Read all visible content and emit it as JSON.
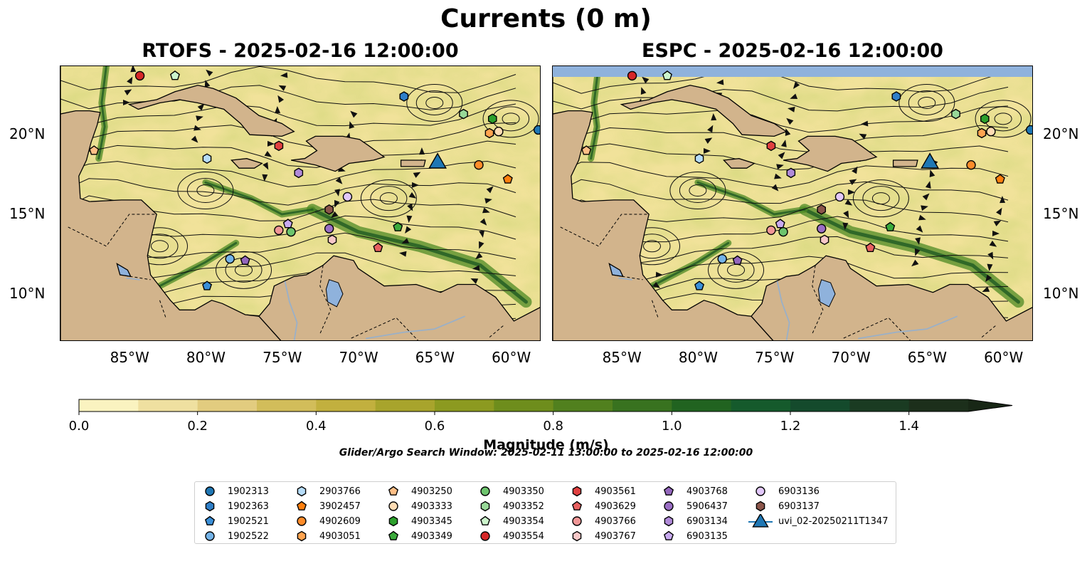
{
  "title": "Currents (0 m)",
  "panels": [
    {
      "title": "RTOFS - 2025-02-16 12:00:00"
    },
    {
      "title": "ESPC - 2025-02-16 12:00:00"
    }
  ],
  "axes": {
    "lon_labels": [
      "85°W",
      "80°W",
      "75°W",
      "70°W",
      "65°W",
      "60°W"
    ],
    "lat_labels": [
      "20°N",
      "15°N",
      "10°N"
    ],
    "lon_range": [
      -89.5,
      -58.0
    ],
    "lat_range": [
      7.0,
      24.3
    ]
  },
  "colorbar": {
    "label": "Magnitude (m/s)",
    "ticks": [
      "0.0",
      "0.2",
      "0.4",
      "0.6",
      "0.8",
      "1.0",
      "1.2",
      "1.4"
    ],
    "range": [
      0,
      1.5
    ],
    "step": 0.1,
    "extend": "max",
    "colors": [
      "#faf3c0",
      "#efe0a0",
      "#e2cc7f",
      "#d2bd5a",
      "#c2b03e",
      "#a8a42c",
      "#8c9a20",
      "#6e8d1c",
      "#51801e",
      "#38721f",
      "#216320",
      "#155a2c",
      "#144a2c",
      "#1a3b22",
      "#1c2f1b",
      "#182716"
    ]
  },
  "search_window": "Glider/Argo Search Window: 2025-02-11 13:00:00 to 2025-02-16 12:00:00",
  "platforms": [
    {
      "id": "1902313",
      "marker": "circle",
      "color": "#1f77b4",
      "lon": -58.2,
      "lat": 20.3
    },
    {
      "id": "1902363",
      "marker": "hexagon",
      "color": "#2f7fc8",
      "lon": -67.0,
      "lat": 22.4
    },
    {
      "id": "1902521",
      "marker": "pentagon",
      "color": "#3a8fd8",
      "lon": -79.9,
      "lat": 10.5
    },
    {
      "id": "1902522",
      "marker": "circle",
      "color": "#74b3e8",
      "lon": -78.4,
      "lat": 12.2
    },
    {
      "id": "2903766",
      "marker": "hexagon",
      "color": "#b6dcf8",
      "lon": -79.9,
      "lat": 18.5
    },
    {
      "id": "3902457",
      "marker": "pentagon",
      "color": "#ff7f0e",
      "lon": -60.2,
      "lat": 17.2
    },
    {
      "id": "4902609",
      "marker": "circle",
      "color": "#ff8c2a",
      "lon": -62.1,
      "lat": 18.1
    },
    {
      "id": "4903051",
      "marker": "hexagon",
      "color": "#ffa450",
      "lon": -61.4,
      "lat": 20.1
    },
    {
      "id": "4903250",
      "marker": "pentagon",
      "color": "#ffbf86",
      "lon": -87.3,
      "lat": 19.0
    },
    {
      "id": "4903333",
      "marker": "circle",
      "color": "#ffdcb4",
      "lon": -60.8,
      "lat": 20.2
    },
    {
      "id": "4903345",
      "marker": "hexagon",
      "color": "#2ca02c",
      "lon": -61.2,
      "lat": 21.0
    },
    {
      "id": "4903349",
      "marker": "pentagon",
      "color": "#3caa3c",
      "lon": -67.4,
      "lat": 14.2
    },
    {
      "id": "4903350",
      "marker": "circle",
      "color": "#6dc46d",
      "lon": -74.4,
      "lat": 13.9
    },
    {
      "id": "4903352",
      "marker": "hexagon",
      "color": "#98d898",
      "lon": -63.1,
      "lat": 21.3
    },
    {
      "id": "4903354",
      "marker": "pentagon",
      "color": "#ccf5cc",
      "lon": -82.0,
      "lat": 23.7
    },
    {
      "id": "4903554",
      "marker": "circle",
      "color": "#d62728",
      "lon": -84.3,
      "lat": 23.7
    },
    {
      "id": "4903561",
      "marker": "hexagon",
      "color": "#e04040",
      "lon": -75.2,
      "lat": 19.3
    },
    {
      "id": "4903629",
      "marker": "pentagon",
      "color": "#e86060",
      "lon": -68.7,
      "lat": 12.9
    },
    {
      "id": "4903766",
      "marker": "circle",
      "color": "#f09696",
      "lon": -75.2,
      "lat": 14.0
    },
    {
      "id": "4903767",
      "marker": "hexagon",
      "color": "#f8c8c8",
      "lon": -71.7,
      "lat": 13.4
    },
    {
      "id": "4903768",
      "marker": "pentagon",
      "color": "#9467bd",
      "lon": -77.4,
      "lat": 12.1
    },
    {
      "id": "5906437",
      "marker": "circle",
      "color": "#9a6ec4",
      "lon": -71.9,
      "lat": 14.1
    },
    {
      "id": "6903134",
      "marker": "hexagon",
      "color": "#b08ad8",
      "lon": -73.9,
      "lat": 17.6
    },
    {
      "id": "6903135",
      "marker": "pentagon",
      "color": "#c8aaf0",
      "lon": -74.6,
      "lat": 14.4
    },
    {
      "id": "6903136",
      "marker": "circle",
      "color": "#e2c8fa",
      "lon": -70.7,
      "lat": 16.1
    },
    {
      "id": "6903137",
      "marker": "hexagon",
      "color": "#8c564b",
      "lon": -71.9,
      "lat": 15.3
    },
    {
      "id": "uvi_02-20250211T1347",
      "marker": "triangle",
      "color": "#1f77b4",
      "lon": -64.8,
      "lat": 18.3
    }
  ]
}
